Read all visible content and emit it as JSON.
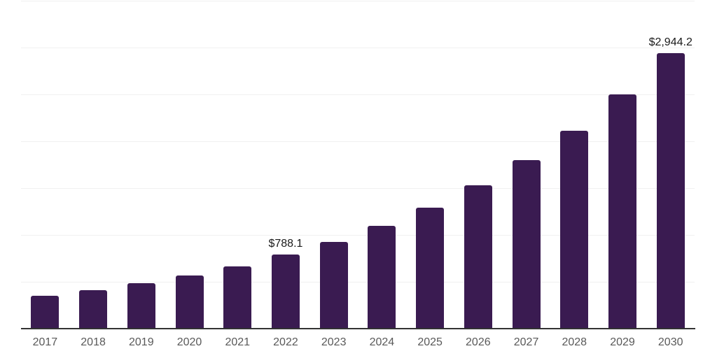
{
  "chart_data": {
    "type": "bar",
    "title": "",
    "xlabel": "",
    "ylabel": "",
    "categories": [
      "2017",
      "2018",
      "2019",
      "2020",
      "2021",
      "2022",
      "2023",
      "2024",
      "2025",
      "2026",
      "2027",
      "2028",
      "2029",
      "2030"
    ],
    "values": [
      350,
      410,
      483,
      570,
      668,
      788.1,
      925,
      1098,
      1295,
      1527,
      1800,
      2115,
      2500,
      2944.2
    ],
    "value_labels": {
      "2022": "$788.1",
      "2030": "$2,944.2"
    },
    "ylim": [
      0,
      3500
    ],
    "gridline_step": 500,
    "grid": true,
    "legend_position": "none",
    "colors": {
      "bar": "#3a1b51",
      "gridline": "#f0f0f0",
      "axis_line": "#333333",
      "x_tick_label": "#595959",
      "value_label": "#1a1a1a",
      "background": "#ffffff"
    }
  }
}
